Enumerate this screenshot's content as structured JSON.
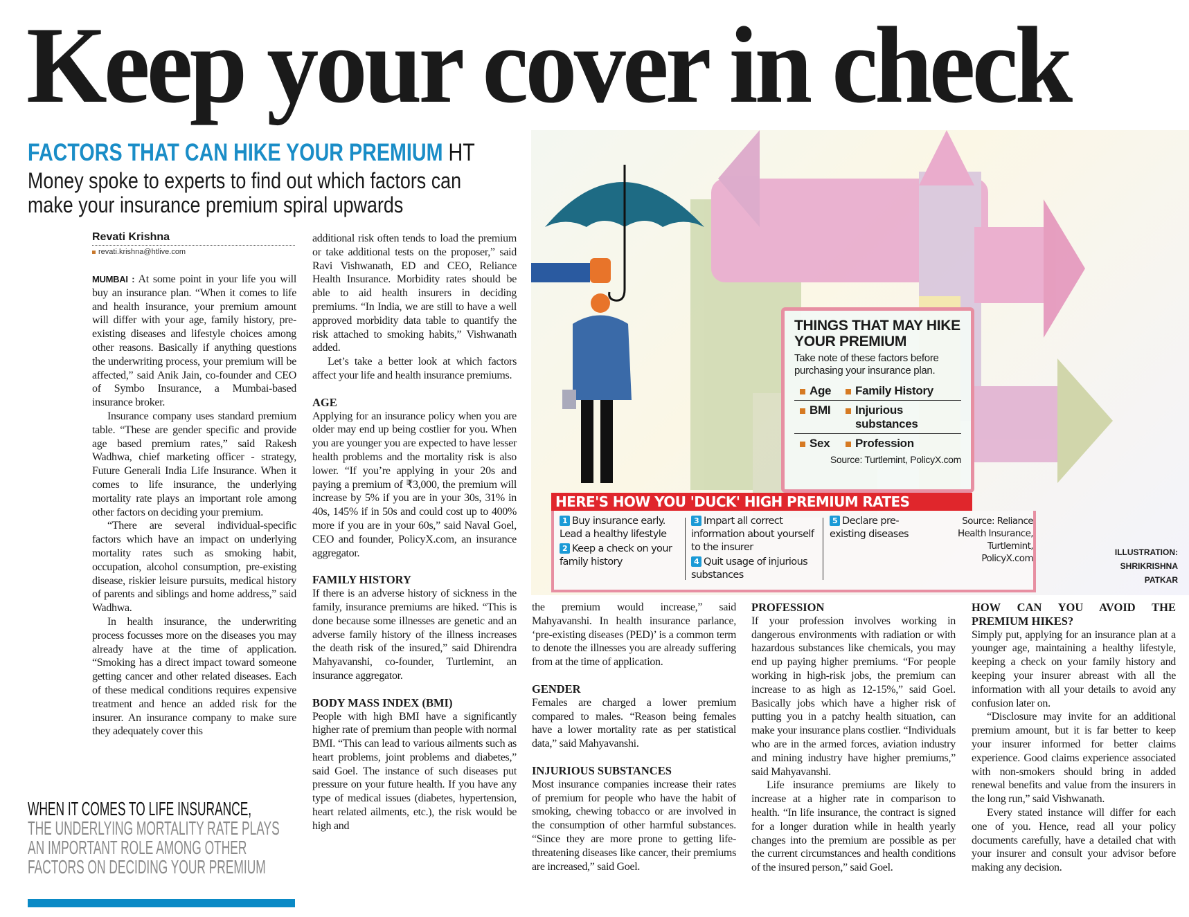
{
  "headline": "Keep your cover in check",
  "kicker": {
    "title": "FACTORS THAT CAN HIKE YOUR PREMIUM",
    "tag": "HT"
  },
  "deck": "Money spoke to experts to find out which factors can make your insurance premium spiral upwards",
  "byline": {
    "author": "Revati Krishna",
    "email": "revati.krishna@htlive.com"
  },
  "columns": {
    "c1": {
      "dateline": "MUMBAI :",
      "p": [
        "At some point in your life you will buy an insurance plan. “When it comes to life and health insurance, your premium amount will differ with your age, family history, pre-existing diseases and lifestyle choices among other reasons. Basically if anything questions the underwriting process, your premium will be affected,” said Anik Jain, co-founder and CEO of Symbo Insurance, a Mumbai-based insurance broker.",
        "Insurance company uses standard premium table. “These are gender specific and provide age based premium rates,” said Rakesh Wadhwa, chief marketing officer - strategy, Future Generali India Life Insurance. When it comes to life insurance, the underlying mortality rate plays an important role among other factors on deciding your premium.",
        "“There are several individual-specific factors which have an impact on underlying mortality rates such as smoking habit, occupation, alcohol consumption, pre-existing disease, riskier leisure pursuits, medical history of parents and siblings and home address,” said Wadhwa.",
        "In health insurance, the underwriting process focusses more on the diseases you may already have at the time of application. “Smoking has a direct impact toward someone getting cancer and other related diseases. Each of these medical conditions requires expensive treatment and hence an added risk for the insurer. An insurance company to make sure they adequately cover this"
      ]
    },
    "c2": {
      "p": [
        "additional risk often tends to load the premium or take additional tests on the proposer,” said Ravi Vishwanath, ED and CEO, Reliance Health Insurance. Morbidity rates should be able to aid health insurers in deciding premiums. “In India, we are still to have a well approved morbidity data table to quantify the risk attached to smoking habits,” Vishwanath added.",
        "Let’s take a better look at which factors affect your life and health insurance premiums."
      ],
      "h_age": "AGE",
      "age": "Applying for an insurance policy when you are older may end up being costlier for you. When you are younger you are expected to have lesser health problems and the mortality risk is also lower. “If you’re applying in your 20s and paying a premium of ₹3,000, the premium will increase by 5% if you are in your 30s, 31% in 40s, 145% if in 50s and could cost up to 400% more if you are in your 60s,” said Naval Goel, CEO and founder, PolicyX.com, an insurance aggregator.",
      "h_family": "FAMILY HISTORY",
      "family": "If there is an adverse history of sickness in the family, insurance premiums are hiked. “This is done because some illnesses are genetic and an adverse family history of the illness increases the death risk of the insured,” said Dhirendra Mahyavanshi, co-founder, Turtlemint, an insurance aggregator.",
      "h_bmi": "BODY MASS INDEX (BMI)",
      "bmi": "People with high BMI have a significantly higher rate of premium than people with normal BMI. “This can lead to various ailments such as heart problems, joint problems and diabetes,” said Goel. The instance of such diseases put pressure on your future health. If you have any type of medical issues (diabetes, hypertension, heart related ailments, etc.), the risk would be high and"
    },
    "c3": {
      "p0": "the premium would increase,” said Mahyavanshi. In health insurance parlance, ‘pre-existing diseases (PED)’ is a common term to denote the illnesses you are already suffering from at the time of application.",
      "h_gender": "GENDER",
      "gender": "Females are charged a lower premium compared to males. “Reason being females have a lower mortality rate as per statistical data,” said Mahyavanshi.",
      "h_inj": "INJURIOUS SUBSTANCES",
      "inj": "Most insurance companies increase their rates of premium for people who have the habit of smoking, chewing tobacco or are involved in the consumption of other harmful substances. “Since they are more prone to getting life-threatening diseases like cancer, their premiums are increased,” said Goel."
    },
    "c4": {
      "h_prof": "PROFESSION",
      "prof": "If your profession involves working in dangerous environments with radiation or with hazardous substances like chemicals, you may end up paying higher premiums. “For people working in high-risk jobs, the premium can increase to as high as 12-15%,” said Goel. Basically jobs which have a higher risk of putting you in a patchy health situation, can make your insurance plans costlier. “Individuals who are in the armed forces, aviation industry and mining industry have higher premiums,” said Mahyavanshi.",
      "p2": "Life insurance premiums are likely to increase at a higher rate in comparison to health. “In life insurance, the contract is signed for a longer duration while in health yearly changes into the premium are possible as per the current circumstances and health conditions of the insured person,” said Goel."
    },
    "c5": {
      "h_avoid": "HOW CAN YOU AVOID THE PREMIUM HIKES?",
      "p1": "Simply put, applying for an insurance plan at a younger age, maintaining a healthy lifestyle, keeping a check on your family history and keeping your insurer abreast with all the information with all your details to avoid any confusion later on.",
      "p2": "“Disclosure may invite for an additional premium amount, but it is far better to keep your insurer informed for better claims experience. Good claims experience associated with non-smokers should bring in added renewal benefits and value from the insurers in the long run,” said Vishwanath.",
      "p3": "Every stated instance will differ for each one of you. Hence, read all your policy documents carefully, have a detailed chat with your insurer and consult your advisor before making any decision."
    }
  },
  "pullquote": {
    "lead": "WHEN IT COMES TO LIFE INSURANCE,",
    "rest": "THE UNDERLYING MORTALITY RATE PLAYS AN IMPORTANT ROLE AMONG OTHER FACTORS ON DECIDING YOUR PREMIUM"
  },
  "factors_box": {
    "title": "THINGS THAT MAY HIKE YOUR PREMIUM",
    "subtitle": "Take note of these factors before purchasing your insurance plan.",
    "items": [
      "Age",
      "Family History",
      "BMI",
      "Injurious substances",
      "Sex",
      "Profession"
    ],
    "source": "Source: Turtlemint, PolicyX.com"
  },
  "tips_box": {
    "title": "HERE'S HOW YOU 'DUCK' HIGH PREMIUM RATES",
    "tips": [
      {
        "n": "1",
        "text": "Buy insurance early. Lead a healthy lifestyle"
      },
      {
        "n": "2",
        "text": "Keep a check on your family history"
      },
      {
        "n": "3",
        "text": "Impart all correct information about yourself to the insurer"
      },
      {
        "n": "4",
        "text": "Quit usage of injurious substances"
      },
      {
        "n": "5",
        "text": "Declare pre-existing diseases"
      }
    ],
    "source": "Source: Reliance Health Insurance, Turtlemint, PolicyX.com"
  },
  "credit": {
    "label": "ILLUSTRATION:",
    "artist": "SHRIKRISHNA PATKAR"
  },
  "colors": {
    "kicker_blue": "#1a8dc7",
    "banner_red": "#e0262c",
    "bullet_orange": "#d67a22",
    "number_blue": "#1b9ad6",
    "frame_pink": "#e78fa2"
  }
}
